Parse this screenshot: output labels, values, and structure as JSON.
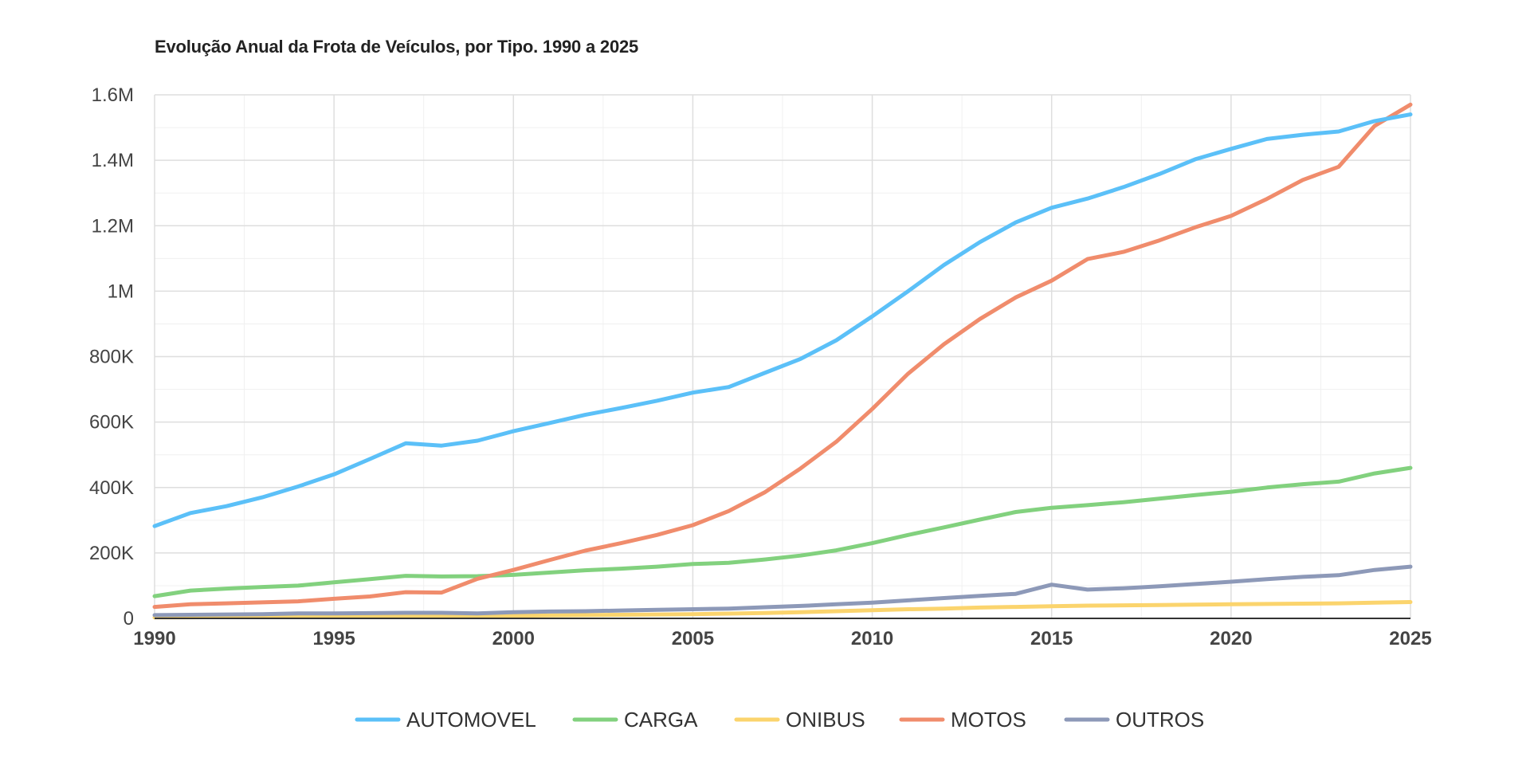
{
  "chart_data": {
    "type": "line",
    "title": "Evolução Anual da Frota de Veículos, por Tipo. 1990 a 2025",
    "xlabel": "",
    "ylabel": "",
    "xlim": [
      1990,
      2025
    ],
    "ylim": [
      0,
      1600000
    ],
    "grid": true,
    "legend_position": "bottom",
    "x": [
      1990,
      1991,
      1992,
      1993,
      1994,
      1995,
      1996,
      1997,
      1998,
      1999,
      2000,
      2001,
      2002,
      2003,
      2004,
      2005,
      2006,
      2007,
      2008,
      2009,
      2010,
      2011,
      2012,
      2013,
      2014,
      2015,
      2016,
      2017,
      2018,
      2019,
      2020,
      2021,
      2022,
      2023,
      2024,
      2025
    ],
    "x_ticks": [
      1990,
      1995,
      2000,
      2005,
      2010,
      2015,
      2020,
      2025
    ],
    "x_tick_labels": [
      "1990",
      "1995",
      "2000",
      "2005",
      "2010",
      "2015",
      "2020",
      "2025"
    ],
    "y_ticks": [
      0,
      200000,
      400000,
      600000,
      800000,
      1000000,
      1200000,
      1400000,
      1600000
    ],
    "y_tick_labels": [
      "0",
      "200K",
      "400K",
      "600K",
      "800K",
      "1M",
      "1.2M",
      "1.4M",
      "1.6M"
    ],
    "series": [
      {
        "name": "AUTOMOVEL",
        "color": "#5bc0f8",
        "values": [
          282000,
          322000,
          343000,
          370000,
          403000,
          440000,
          487000,
          535000,
          528000,
          543000,
          572000,
          597000,
          622000,
          643000,
          665000,
          690000,
          707000,
          750000,
          793000,
          850000,
          923000,
          1000000,
          1080000,
          1150000,
          1210000,
          1255000,
          1283000,
          1318000,
          1358000,
          1403000,
          1435000,
          1465000,
          1478000,
          1488000,
          1520000,
          1540000
        ]
      },
      {
        "name": "CARGA",
        "color": "#82d17e",
        "values": [
          68000,
          85000,
          91000,
          96000,
          100000,
          110000,
          120000,
          130000,
          128000,
          129000,
          133000,
          140000,
          147000,
          152000,
          158000,
          166000,
          170000,
          180000,
          192000,
          208000,
          230000,
          255000,
          278000,
          302000,
          325000,
          338000,
          346000,
          355000,
          366000,
          377000,
          387000,
          400000,
          410000,
          418000,
          443000,
          460000
        ]
      },
      {
        "name": "ONIBUS",
        "color": "#fbd46d",
        "values": [
          3000,
          3500,
          4000,
          4500,
          5000,
          5500,
          6000,
          6500,
          7000,
          7500,
          8000,
          9000,
          10000,
          11000,
          12000,
          13000,
          14500,
          16500,
          19000,
          22000,
          25000,
          28000,
          30000,
          33000,
          35000,
          37000,
          39000,
          40000,
          41000,
          42000,
          43000,
          44000,
          45000,
          46000,
          48000,
          50000
        ]
      },
      {
        "name": "MOTOS",
        "color": "#f08c6c",
        "values": [
          35000,
          43000,
          46000,
          49000,
          52000,
          60000,
          67000,
          80000,
          79000,
          121000,
          148000,
          178000,
          207000,
          230000,
          255000,
          285000,
          328000,
          385000,
          458000,
          540000,
          640000,
          748000,
          838000,
          915000,
          981000,
          1032000,
          1098000,
          1120000,
          1155000,
          1195000,
          1230000,
          1282000,
          1340000,
          1380000,
          1505000,
          1570000
        ]
      },
      {
        "name": "OUTROS",
        "color": "#8d99b8",
        "values": [
          10000,
          11000,
          12000,
          13000,
          15000,
          15000,
          16000,
          17000,
          17000,
          15000,
          19000,
          21000,
          22000,
          24000,
          26000,
          28000,
          30000,
          34000,
          38000,
          43000,
          48000,
          55000,
          62000,
          69000,
          75000,
          103000,
          88000,
          92000,
          98000,
          105000,
          112000,
          120000,
          127000,
          132000,
          148000,
          158000
        ]
      }
    ]
  }
}
